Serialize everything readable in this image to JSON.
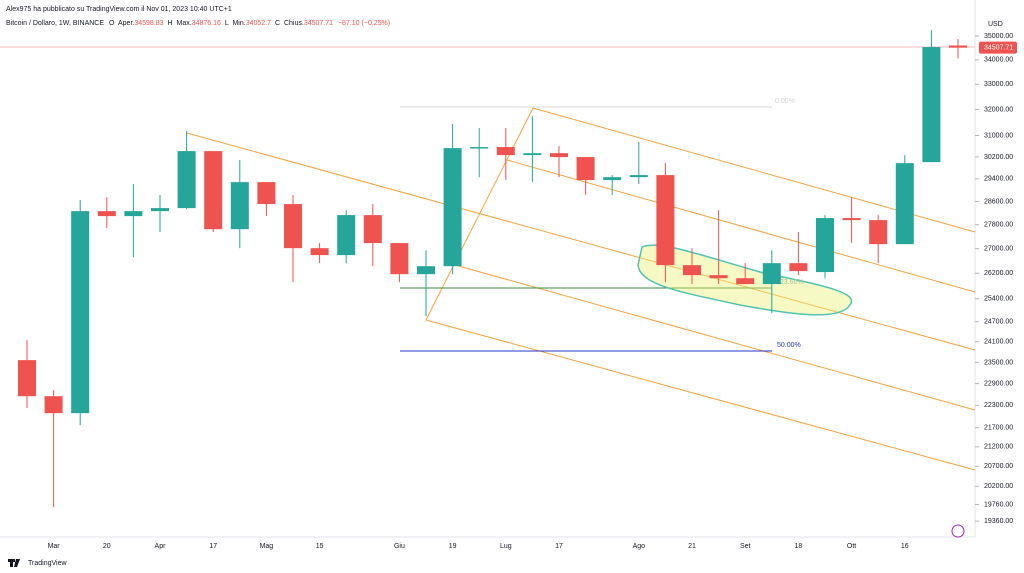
{
  "chart_data": {
    "type": "candlestick",
    "publisher": "Alex975 ha pubblicato su TradingView.com il Nov 01, 2023 10:40 UTC+1",
    "symbol": "Bitcoin / Dollaro, 1W, BINANCE",
    "open_label": "O",
    "open_name": "Aper.",
    "high_label": "H",
    "high_name": "Max.",
    "low_label": "L",
    "low_name": "Min.",
    "close_label": "C",
    "close_name": "Chius.",
    "change": "−87.10 (−0.25%)",
    "currency": "USD",
    "brand": "TradingView",
    "annotations": [
      "0.00%",
      "23.60%",
      "50.00%"
    ],
    "log_scale": true,
    "up_color": "#26a69a",
    "down_color": "#ef5350",
    "categories": [
      null,
      "Mar",
      null,
      "20",
      null,
      "Apr",
      null,
      "17",
      null,
      "Mag",
      null,
      "15",
      null,
      null,
      "Giu",
      null,
      "19",
      null,
      "Lug",
      null,
      "17",
      null,
      null,
      "Ago",
      null,
      "21",
      null,
      "Set",
      null,
      "18",
      null,
      "Ott",
      null,
      "16",
      null,
      null
    ],
    "open": [
      23566,
      22551,
      22089,
      28266,
      28095,
      28266,
      28371,
      30415,
      27650,
      29285,
      28511,
      27017,
      26789,
      28130,
      27185,
      26173,
      26429,
      30527,
      30566,
      30268,
      30338,
      30194,
      29358,
      29463,
      29537,
      26463,
      26142,
      26044,
      25858,
      26527,
      26240,
      28028,
      27958,
      27150,
      30009,
      34598.83
    ],
    "high": [
      24147,
      22719,
      28651,
      28754,
      29214,
      28826,
      31168,
      30415,
      30083,
      29285,
      28826,
      27185,
      28300,
      28511,
      27185,
      26950,
      31437,
      31283,
      31283,
      31741,
      30601,
      30194,
      29537,
      30751,
      29971,
      27017,
      28300,
      26527,
      26950,
      27552,
      28130,
      28754,
      28130,
      30268,
      35256,
      34876.16
    ],
    "low": [
      22225,
      19695,
      21767,
      27689,
      26722,
      27552,
      28336,
      27552,
      27017,
      28095,
      25918,
      26527,
      26527,
      26429,
      25918,
      24864,
      26173,
      29463,
      29358,
      29285,
      29463,
      28826,
      28826,
      29214,
      25918,
      25858,
      25858,
      25918,
      24955,
      26142,
      26044,
      27185,
      26527,
      27150,
      30009,
      34052.7
    ],
    "close": [
      22551,
      22089,
      28266,
      28095,
      28266,
      28371,
      30415,
      27650,
      29285,
      28511,
      27017,
      26789,
      28130,
      27185,
      26173,
      26429,
      30527,
      30566,
      30268,
      30338,
      30194,
      29358,
      29463,
      29537,
      26463,
      26142,
      26044,
      25858,
      26527,
      26271,
      28028,
      27958,
      27150,
      29971,
      34534,
      34507.71
    ],
    "ylim": [
      18990,
      35780
    ],
    "yticks": [
      {
        "value": 35000,
        "label": "35000.00"
      },
      {
        "value": 34000,
        "label": "34000.00"
      },
      {
        "value": 33000,
        "label": "33000.00"
      },
      {
        "value": 32000,
        "label": "32000.00"
      },
      {
        "value": 31000,
        "label": "31000.00"
      },
      {
        "value": 30200,
        "label": "30200.00"
      },
      {
        "value": 29400,
        "label": "29400.00"
      },
      {
        "value": 28600,
        "label": "28600.00"
      },
      {
        "value": 27800,
        "label": "27800.00"
      },
      {
        "value": 27000,
        "label": "27000.00"
      },
      {
        "value": 26200,
        "label": "26200.00"
      },
      {
        "value": 25400,
        "label": "25400.00"
      },
      {
        "value": 24700,
        "label": "24700.00"
      },
      {
        "value": 24100,
        "label": "24100.00"
      },
      {
        "value": 23500,
        "label": "23500.00"
      },
      {
        "value": 22900,
        "label": "22900.00"
      },
      {
        "value": 22300,
        "label": "22300.00"
      },
      {
        "value": 21700,
        "label": "21700.00"
      },
      {
        "value": 21200,
        "label": "21200.00"
      },
      {
        "value": 20700,
        "label": "20700.00"
      },
      {
        "value": 20200,
        "label": "20200.00"
      },
      {
        "value": 19760,
        "label": "19760.00"
      },
      {
        "value": 19360,
        "label": "19360.00"
      }
    ]
  }
}
